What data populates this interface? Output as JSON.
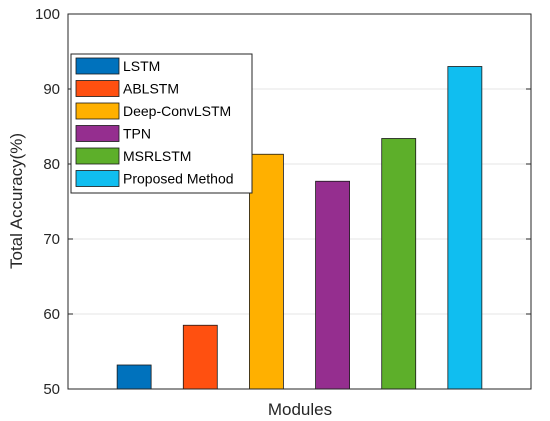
{
  "chart_data": {
    "type": "bar",
    "xlabel": "Modules",
    "ylabel": "Total Accuracy(%)",
    "ylim": [
      50,
      100
    ],
    "yticks": [
      50,
      60,
      70,
      80,
      90,
      100
    ],
    "grid": "horizontal",
    "legend_position": "top-left",
    "series": [
      {
        "name": "LSTM",
        "value": 53.2,
        "color": "#0072BD"
      },
      {
        "name": "ABLSTM",
        "value": 58.5,
        "color": "#FF5010"
      },
      {
        "name": "Deep-ConvLSTM",
        "value": 81.3,
        "color": "#FFB000"
      },
      {
        "name": "TPN",
        "value": 77.7,
        "color": "#952E8F"
      },
      {
        "name": "MSRLSTM",
        "value": 83.4,
        "color": "#5DAF2A"
      },
      {
        "name": "Proposed Method",
        "value": 93.0,
        "color": "#10BEF0"
      }
    ]
  }
}
